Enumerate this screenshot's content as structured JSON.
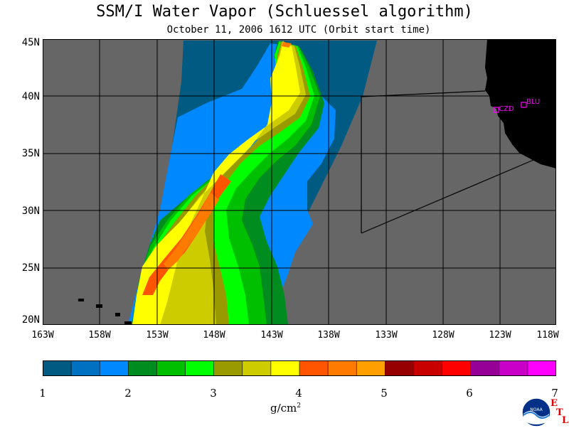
{
  "title": "SSM/I Water Vapor (Schluessel algorithm)",
  "subtitle": "October 11, 2006  1612 UTC  (Orbit start time)",
  "lat_labels": [
    "45N",
    "40N",
    "35N",
    "30N",
    "25N",
    "20N"
  ],
  "lon_labels": [
    "163W",
    "158W",
    "153W",
    "148W",
    "143W",
    "138W",
    "133W",
    "128W",
    "123W",
    "118W"
  ],
  "stations": [
    {
      "name": "CZD"
    },
    {
      "name": "BLU"
    }
  ],
  "colorbar": {
    "unit_base": "g/cm",
    "unit_exp": "2",
    "ticks": [
      "1",
      "2",
      "3",
      "4",
      "5",
      "6",
      "7"
    ],
    "colors": [
      "#005a82",
      "#0070c0",
      "#0088ff",
      "#008c1e",
      "#00be00",
      "#00ff00",
      "#999900",
      "#cccc00",
      "#ffff00",
      "#ff5500",
      "#ff7a00",
      "#ffa000",
      "#960000",
      "#c80000",
      "#ff0000",
      "#960096",
      "#c800c8",
      "#ff00ff"
    ]
  },
  "logo": {
    "text": "NOAA",
    "etl": [
      "E",
      "T",
      "L"
    ]
  },
  "colors": {
    "land": "#000000",
    "background": "#666666",
    "station": "#ff00ff"
  }
}
